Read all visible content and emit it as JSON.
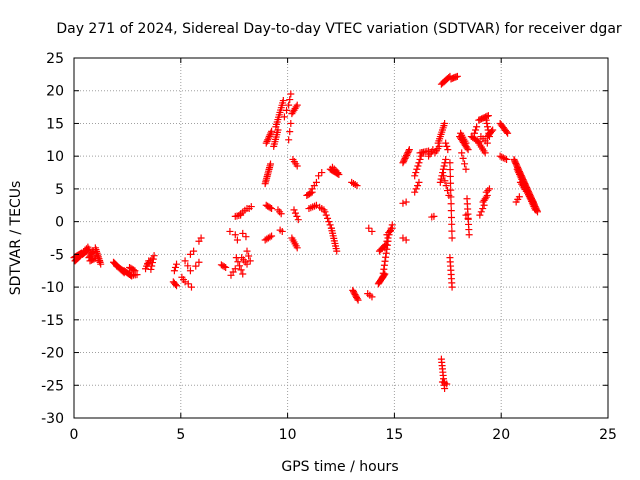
{
  "chart_data": {
    "type": "scatter",
    "title": "Day 271 of 2024, Sidereal Day-to-day VTEC variation (SDTVAR) for receiver dgar",
    "xlabel": "GPS time / hours",
    "ylabel": "SDTVAR / TECUs",
    "xlim": [
      0,
      25
    ],
    "ylim": [
      -30,
      25
    ],
    "xticks": [
      0,
      5,
      10,
      15,
      20,
      25
    ],
    "yticks": [
      -30,
      -25,
      -20,
      -15,
      -10,
      -5,
      0,
      5,
      10,
      15,
      20,
      25
    ],
    "grid": true,
    "marker": "+",
    "color": "#ff0000",
    "segments": [
      [
        0.0,
        -5.5,
        0.35,
        -4.8,
        10
      ],
      [
        0.05,
        -6.0,
        0.3,
        -5.2,
        8
      ],
      [
        0.4,
        -5.0,
        0.7,
        -4.2,
        8
      ],
      [
        0.45,
        -4.6,
        0.65,
        -3.9,
        4
      ],
      [
        0.7,
        -5.5,
        0.9,
        -4.5,
        6
      ],
      [
        0.75,
        -6.0,
        1.0,
        -5.6,
        5
      ],
      [
        1.0,
        -4.0,
        1.25,
        -6.5,
        10
      ],
      [
        1.05,
        -4.8,
        1.2,
        -6.0,
        5
      ],
      [
        1.85,
        -6.2,
        2.35,
        -7.8,
        12
      ],
      [
        2.0,
        -6.8,
        2.3,
        -7.5,
        6
      ],
      [
        2.35,
        -7.5,
        2.7,
        -8.3,
        8
      ],
      [
        2.6,
        -7.0,
        2.85,
        -7.5,
        5
      ],
      [
        2.7,
        -8.2,
        2.95,
        -8.1,
        4
      ],
      [
        3.35,
        -7.2,
        3.5,
        -6.0,
        4
      ],
      [
        3.45,
        -6.5,
        3.65,
        -5.7,
        4
      ],
      [
        3.6,
        -7.3,
        3.75,
        -5.2,
        5
      ],
      [
        4.65,
        -9.2,
        4.8,
        -9.8,
        4
      ],
      [
        4.7,
        -7.5,
        4.8,
        -6.5,
        3
      ],
      [
        5.05,
        -8.5,
        5.2,
        -9.2,
        3
      ],
      [
        5.2,
        -6.0,
        5.45,
        -7.5,
        3
      ],
      [
        5.35,
        -9.5,
        5.5,
        -10.0,
        2
      ],
      [
        5.45,
        -5.0,
        5.6,
        -4.5,
        2
      ],
      [
        5.7,
        -6.8,
        5.85,
        -6.2,
        2
      ],
      [
        5.85,
        -3.0,
        5.95,
        -2.5,
        2
      ],
      [
        6.9,
        -6.6,
        7.1,
        -7.0,
        4
      ],
      [
        7.35,
        -8.2,
        7.55,
        -7.2,
        3
      ],
      [
        7.3,
        -1.5,
        7.4,
        -1.4,
        1
      ],
      [
        7.55,
        0.8,
        7.8,
        1.0,
        4
      ],
      [
        7.6,
        -5.5,
        7.9,
        -8.0,
        5
      ],
      [
        7.55,
        -2.0,
        7.65,
        -2.8,
        2
      ],
      [
        7.8,
        1.2,
        8.1,
        2.0,
        4
      ],
      [
        7.85,
        -5.5,
        8.1,
        -6.5,
        4
      ],
      [
        7.9,
        -1.8,
        8.05,
        -2.3,
        2
      ],
      [
        8.1,
        -4.5,
        8.25,
        -6.0,
        3
      ],
      [
        8.2,
        2.0,
        8.3,
        2.3,
        2
      ],
      [
        8.95,
        5.8,
        9.2,
        8.8,
        12
      ],
      [
        8.95,
        -2.8,
        9.25,
        -2.2,
        5
      ],
      [
        9.0,
        12.0,
        9.25,
        13.8,
        8
      ],
      [
        9.0,
        2.5,
        9.25,
        2.0,
        5
      ],
      [
        9.35,
        11.5,
        9.55,
        14.0,
        8
      ],
      [
        9.45,
        14.5,
        9.8,
        18.5,
        12
      ],
      [
        9.55,
        1.8,
        9.7,
        1.2,
        3
      ],
      [
        9.65,
        -1.3,
        9.75,
        -1.5,
        2
      ],
      [
        9.85,
        16.0,
        9.95,
        17.0,
        2
      ],
      [
        10.05,
        17.8,
        10.15,
        19.5,
        3
      ],
      [
        10.05,
        12.5,
        10.15,
        15.0,
        3
      ],
      [
        10.2,
        16.5,
        10.45,
        17.8,
        6
      ],
      [
        10.25,
        9.5,
        10.45,
        8.5,
        4
      ],
      [
        10.2,
        -2.5,
        10.45,
        -4.0,
        6
      ],
      [
        10.3,
        1.8,
        10.5,
        0.3,
        4
      ],
      [
        10.9,
        4.0,
        11.15,
        4.5,
        5
      ],
      [
        11.0,
        2.0,
        11.35,
        2.5,
        5
      ],
      [
        11.15,
        5.0,
        11.35,
        6.0,
        3
      ],
      [
        11.45,
        7.0,
        11.6,
        7.5,
        2
      ],
      [
        11.5,
        2.2,
        11.7,
        1.8,
        3
      ],
      [
        11.75,
        1.5,
        12.05,
        -1.0,
        6
      ],
      [
        12.05,
        -1.0,
        12.3,
        -4.5,
        10
      ],
      [
        12.0,
        8.0,
        12.4,
        7.2,
        8
      ],
      [
        12.1,
        8.3,
        12.35,
        7.5,
        4
      ],
      [
        13.0,
        6.0,
        13.25,
        5.5,
        4
      ],
      [
        13.05,
        -10.5,
        13.3,
        -12.0,
        8
      ],
      [
        13.75,
        -11.0,
        13.95,
        -11.5,
        3
      ],
      [
        13.8,
        -1.0,
        13.95,
        -1.5,
        2
      ],
      [
        14.25,
        -9.5,
        14.55,
        -8.0,
        10
      ],
      [
        14.3,
        -4.5,
        14.6,
        -3.5,
        6
      ],
      [
        14.45,
        -8.5,
        14.7,
        -3.0,
        10
      ],
      [
        14.55,
        -4.0,
        14.9,
        -0.5,
        8
      ],
      [
        14.65,
        -2.0,
        14.9,
        -1.0,
        4
      ],
      [
        15.4,
        2.8,
        15.55,
        3.0,
        2
      ],
      [
        15.4,
        -2.5,
        15.55,
        -2.8,
        2
      ],
      [
        15.4,
        9.0,
        15.7,
        11.0,
        10
      ],
      [
        15.95,
        7.0,
        16.3,
        10.5,
        8
      ],
      [
        15.95,
        4.5,
        16.15,
        6.0,
        4
      ],
      [
        16.2,
        10.5,
        16.6,
        10.8,
        6
      ],
      [
        16.6,
        10.0,
        16.8,
        11.0,
        4
      ],
      [
        16.75,
        0.7,
        16.85,
        0.8,
        2
      ],
      [
        16.9,
        10.5,
        17.1,
        11.5,
        4
      ],
      [
        17.05,
        12.0,
        17.35,
        15.0,
        10
      ],
      [
        17.15,
        6.0,
        17.4,
        9.5,
        8
      ],
      [
        17.2,
        21.0,
        17.6,
        22.2,
        8
      ],
      [
        17.3,
        7.0,
        17.55,
        4.0,
        5
      ],
      [
        17.4,
        12.0,
        17.5,
        11.0,
        3
      ],
      [
        17.65,
        21.8,
        17.95,
        22.2,
        6
      ],
      [
        17.6,
        9.0,
        17.7,
        -2.5,
        12
      ],
      [
        17.6,
        -5.5,
        17.7,
        -10.0,
        8
      ],
      [
        17.2,
        -21.0,
        17.35,
        -25.5,
        10
      ],
      [
        17.25,
        -24.5,
        17.45,
        -24.8,
        3
      ],
      [
        18.05,
        13.0,
        18.45,
        11.0,
        10
      ],
      [
        18.1,
        13.5,
        18.35,
        12.0,
        6
      ],
      [
        18.15,
        10.5,
        18.35,
        8.0,
        4
      ],
      [
        18.4,
        3.5,
        18.5,
        -2.0,
        8
      ],
      [
        18.35,
        1.0,
        18.45,
        0.5,
        2
      ],
      [
        18.6,
        13.0,
        18.95,
        12.2,
        6
      ],
      [
        18.75,
        13.5,
        18.85,
        14.5,
        3
      ],
      [
        18.95,
        15.5,
        19.4,
        16.2,
        8
      ],
      [
        18.95,
        12.0,
        19.25,
        10.5,
        6
      ],
      [
        19.05,
        13.0,
        19.35,
        12.0,
        4
      ],
      [
        19.15,
        3.0,
        19.35,
        4.0,
        5
      ],
      [
        19.0,
        1.0,
        19.2,
        2.5,
        4
      ],
      [
        19.3,
        15.5,
        19.45,
        13.0,
        6
      ],
      [
        19.3,
        4.5,
        19.45,
        5.0,
        3
      ],
      [
        19.35,
        13.0,
        19.6,
        14.0,
        6
      ],
      [
        19.95,
        15.0,
        20.3,
        13.5,
        8
      ],
      [
        19.95,
        10.0,
        20.25,
        9.5,
        5
      ],
      [
        20.6,
        9.5,
        21.7,
        1.5,
        40
      ],
      [
        20.75,
        8.0,
        21.6,
        1.8,
        25
      ],
      [
        20.9,
        6.0,
        21.5,
        3.0,
        12
      ],
      [
        20.7,
        3.0,
        20.85,
        3.8,
        3
      ]
    ]
  }
}
